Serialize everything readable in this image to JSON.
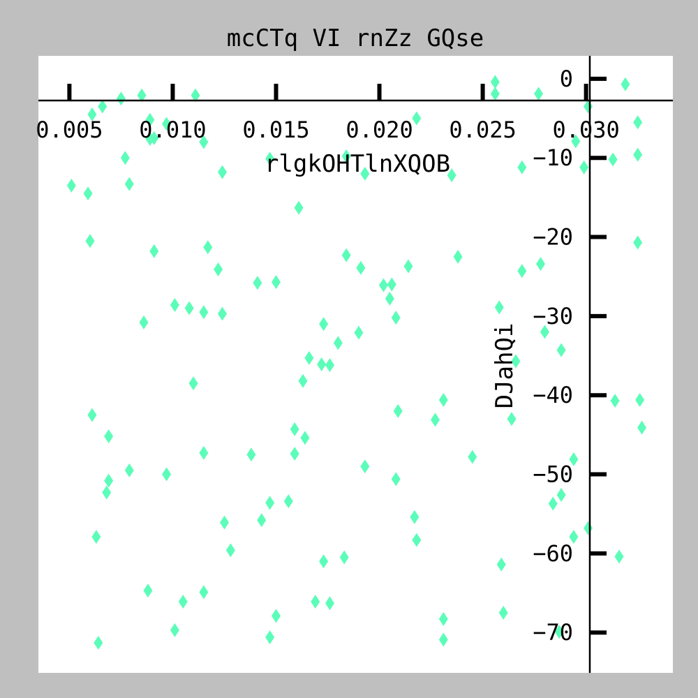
{
  "chart_data": {
    "type": "scatter",
    "title": "mcCTq VI rnZz GQse",
    "xlabel": "rlgkOHTlnXQOB",
    "ylabel": "DJahQi",
    "xlim": [
      0.0035,
      0.0342
    ],
    "ylim": [
      -75.1,
      2.9
    ],
    "xticks": [
      0.005,
      0.01,
      0.015,
      0.02,
      0.025,
      0.03
    ],
    "xtick_labels": [
      "0.005",
      "0.010",
      "0.015",
      "0.020",
      "0.025",
      "0.030"
    ],
    "yticks": [
      0,
      -10,
      -20,
      -30,
      -40,
      -50,
      -60,
      -70
    ],
    "ytick_labels": [
      "0",
      "−10",
      "−20",
      "−30",
      "−40",
      "−50",
      "−60",
      "−70"
    ],
    "grid": false,
    "marker": "diamond",
    "colors": {
      "marker": "#5cfdb9",
      "panel": "#ffffff",
      "frame": "#bfbfbf",
      "axis": "#000000"
    },
    "points": [
      [
        0.0051,
        -13.5
      ],
      [
        0.0059,
        -14.5
      ],
      [
        0.006,
        -20.5
      ],
      [
        0.0061,
        -4.5
      ],
      [
        0.0066,
        -3.5
      ],
      [
        0.0061,
        -42.5
      ],
      [
        0.0063,
        -57.9
      ],
      [
        0.0064,
        -71.3
      ],
      [
        0.0068,
        -52.3
      ],
      [
        0.0069,
        -50.8
      ],
      [
        0.0069,
        -45.2
      ],
      [
        0.0075,
        -2.5
      ],
      [
        0.0077,
        -10.0
      ],
      [
        0.0079,
        -49.5
      ],
      [
        0.0079,
        -13.3
      ],
      [
        0.0085,
        -2.1
      ],
      [
        0.0086,
        -30.8
      ],
      [
        0.0088,
        -64.7
      ],
      [
        0.0089,
        -5.2
      ],
      [
        0.0089,
        -7.6
      ],
      [
        0.0091,
        -7.5
      ],
      [
        0.0091,
        -21.8
      ],
      [
        0.0097,
        -5.7
      ],
      [
        0.0097,
        -50.0
      ],
      [
        0.0101,
        -28.6
      ],
      [
        0.0101,
        -69.7
      ],
      [
        0.0105,
        -66.1
      ],
      [
        0.0108,
        -29.0
      ],
      [
        0.011,
        -38.5
      ],
      [
        0.0111,
        -2.1
      ],
      [
        0.0115,
        -29.5
      ],
      [
        0.0115,
        -8.0
      ],
      [
        0.0115,
        -47.3
      ],
      [
        0.0115,
        -64.9
      ],
      [
        0.0117,
        -21.3
      ],
      [
        0.0122,
        -24.1
      ],
      [
        0.0124,
        -11.8
      ],
      [
        0.0124,
        -29.7
      ],
      [
        0.0125,
        -56.1
      ],
      [
        0.0128,
        -59.6
      ],
      [
        0.0138,
        -47.5
      ],
      [
        0.0141,
        -25.8
      ],
      [
        0.0143,
        -55.8
      ],
      [
        0.0147,
        -53.6
      ],
      [
        0.0147,
        -70.6
      ],
      [
        0.0147,
        -10.1
      ],
      [
        0.015,
        -25.7
      ],
      [
        0.015,
        -67.9
      ],
      [
        0.0156,
        -53.4
      ],
      [
        0.0159,
        -44.3
      ],
      [
        0.0159,
        -47.4
      ],
      [
        0.0161,
        -16.3
      ],
      [
        0.0163,
        -38.2
      ],
      [
        0.0164,
        -45.4
      ],
      [
        0.0166,
        -35.3
      ],
      [
        0.0169,
        -66.1
      ],
      [
        0.0172,
        -36.1
      ],
      [
        0.0173,
        -31.0
      ],
      [
        0.0173,
        -61.0
      ],
      [
        0.0176,
        -36.2
      ],
      [
        0.0176,
        -66.3
      ],
      [
        0.018,
        -33.4
      ],
      [
        0.0183,
        -60.5
      ],
      [
        0.0184,
        -22.3
      ],
      [
        0.0184,
        -9.8
      ],
      [
        0.019,
        -32.1
      ],
      [
        0.0191,
        -23.9
      ],
      [
        0.0193,
        -49.0
      ],
      [
        0.0193,
        -12.0
      ],
      [
        0.0202,
        -26.1
      ],
      [
        0.0205,
        -27.8
      ],
      [
        0.0206,
        -26.0
      ],
      [
        0.0208,
        -50.6
      ],
      [
        0.0208,
        -30.2
      ],
      [
        0.0209,
        -42.0
      ],
      [
        0.0214,
        -23.7
      ],
      [
        0.0217,
        -55.4
      ],
      [
        0.0218,
        -58.3
      ],
      [
        0.0218,
        -5.0
      ],
      [
        0.0227,
        -43.1
      ],
      [
        0.0231,
        -40.6
      ],
      [
        0.0231,
        -68.3
      ],
      [
        0.0231,
        -70.9
      ],
      [
        0.0235,
        -12.2
      ],
      [
        0.0238,
        -22.5
      ],
      [
        0.0245,
        -47.8
      ],
      [
        0.0256,
        -0.4
      ],
      [
        0.0256,
        -1.9
      ],
      [
        0.0258,
        -28.9
      ],
      [
        0.0259,
        -61.4
      ],
      [
        0.026,
        -67.5
      ],
      [
        0.0264,
        -43.0
      ],
      [
        0.0266,
        -35.7
      ],
      [
        0.0269,
        -24.3
      ],
      [
        0.0269,
        -11.2
      ],
      [
        0.0277,
        -1.9
      ],
      [
        0.0278,
        -23.4
      ],
      [
        0.028,
        -32.0
      ],
      [
        0.0284,
        -53.7
      ],
      [
        0.0287,
        -69.9
      ],
      [
        0.0288,
        -52.6
      ],
      [
        0.0288,
        -34.3
      ],
      [
        0.0294,
        -48.1
      ],
      [
        0.0294,
        -57.9
      ],
      [
        0.0295,
        -7.9
      ],
      [
        0.0299,
        -11.2
      ],
      [
        0.0301,
        -56.8
      ],
      [
        0.0301,
        -3.5
      ],
      [
        0.0313,
        -10.2
      ],
      [
        0.0314,
        -40.7
      ],
      [
        0.0316,
        -60.4
      ],
      [
        0.0319,
        -0.7
      ],
      [
        0.0325,
        -5.5
      ],
      [
        0.0325,
        -9.6
      ],
      [
        0.0325,
        -20.7
      ],
      [
        0.0326,
        -40.6
      ],
      [
        0.0327,
        -44.1
      ]
    ]
  }
}
